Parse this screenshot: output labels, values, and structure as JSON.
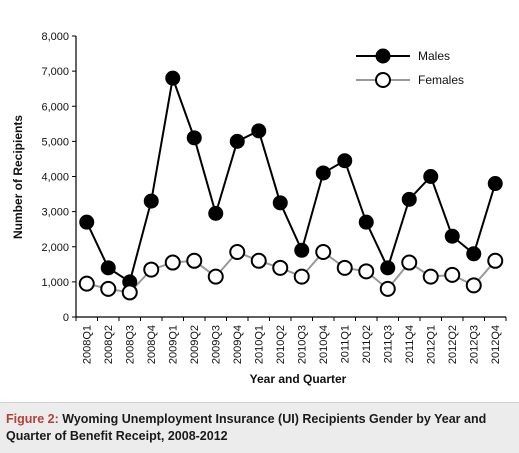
{
  "chart_data": {
    "type": "line",
    "title": "",
    "xlabel": "Year and Quarter",
    "ylabel": "Number of Recipients",
    "ylim": [
      0,
      8000
    ],
    "yticks": [
      0,
      1000,
      2000,
      3000,
      4000,
      5000,
      6000,
      7000,
      8000
    ],
    "ytick_labels": [
      "0",
      "1,000",
      "2,000",
      "3,000",
      "4,000",
      "5,000",
      "6,000",
      "7,000",
      "8,000"
    ],
    "grid": false,
    "legend_position": "top-right",
    "categories": [
      "2008Q1",
      "2008Q2",
      "2008Q3",
      "2008Q4",
      "2009Q1",
      "2009Q2",
      "2009Q3",
      "2009Q4",
      "2010Q1",
      "2010Q2",
      "2010Q3",
      "2010Q4",
      "2011Q1",
      "2011Q2",
      "2011Q3",
      "2011Q4",
      "2012Q1",
      "2012Q2",
      "2012Q3",
      "2012Q4"
    ],
    "series": [
      {
        "name": "Males",
        "color": "#000000",
        "marker": "filled-circle",
        "values": [
          2700,
          1400,
          1000,
          3300,
          6800,
          5100,
          2950,
          5000,
          5300,
          3250,
          1900,
          4100,
          4450,
          2700,
          1400,
          3350,
          4000,
          2300,
          1800,
          3800
        ]
      },
      {
        "name": "Females",
        "color": "#999999",
        "marker": "open-circle",
        "values": [
          950,
          800,
          700,
          1350,
          1550,
          1600,
          1150,
          1850,
          1600,
          1400,
          1150,
          1850,
          1400,
          1300,
          800,
          1550,
          1150,
          1200,
          900,
          1600
        ]
      }
    ]
  },
  "caption": {
    "label": "Figure 2:",
    "text": " Wyoming Unemployment Insurance (UI) Recipients Gender by Year and Quarter of Benefit Receipt, 2008-2012"
  }
}
